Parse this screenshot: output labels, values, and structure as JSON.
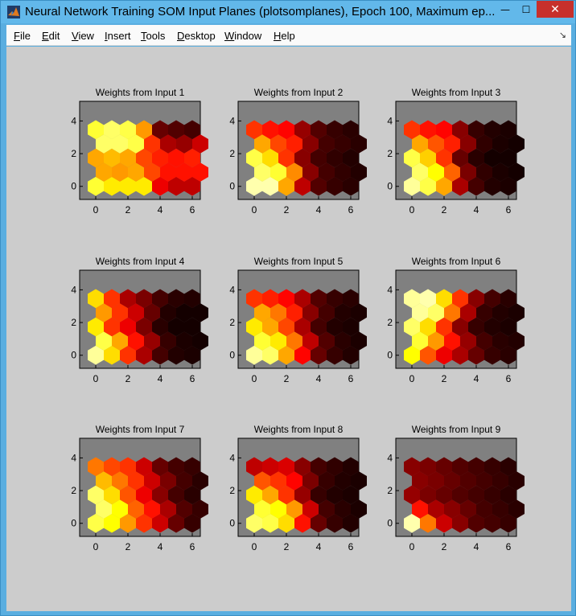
{
  "window": {
    "title": "Neural Network Training SOM Input Planes (plotsomplanes), Epoch 100, Maximum ep...",
    "minimize_glyph": "—",
    "maximize_glyph": "☐",
    "close_glyph": "✕"
  },
  "menu": [
    {
      "key": "F",
      "rest": "ile"
    },
    {
      "key": "E",
      "rest": "dit"
    },
    {
      "key": "V",
      "rest": "iew"
    },
    {
      "key": "I",
      "rest": "nsert"
    },
    {
      "key": "T",
      "rest": "ools"
    },
    {
      "key": "D",
      "rest": "esktop"
    },
    {
      "key": "W",
      "rest": "indow"
    },
    {
      "key": "H",
      "rest": "elp"
    }
  ],
  "colors": {
    "figure_bg": "#cccccc",
    "axes_bg": "#808080",
    "colormap": "hot"
  },
  "chart_data": [
    {
      "type": "heatmap",
      "title": "Weights from Input 1",
      "xticks": [
        "0",
        "2",
        "4",
        "6"
      ],
      "yticks": [
        "0",
        "2",
        "4"
      ],
      "rows": [
        [
          0.8,
          0.72,
          0.72,
          0.72,
          0.35,
          0.28,
          0.28
        ],
        [
          0.62,
          0.6,
          0.62,
          0.48,
          0.4,
          0.4,
          0.4
        ],
        [
          0.62,
          0.65,
          0.62,
          0.48,
          0.42,
          0.4,
          0.42
        ],
        [
          0.85,
          0.85,
          0.82,
          0.45,
          0.25,
          0.22,
          0.3
        ],
        [
          0.8,
          0.85,
          0.82,
          0.6,
          0.15,
          0.12,
          0.1
        ]
      ]
    },
    {
      "type": "heatmap",
      "title": "Weights from Input 2",
      "xticks": [
        "0",
        "2",
        "4",
        "6"
      ],
      "yticks": [
        "0",
        "2",
        "4"
      ],
      "rows": [
        [
          0.92,
          0.92,
          0.62,
          0.28,
          0.12,
          0.08,
          0.06
        ],
        [
          0.85,
          0.8,
          0.58,
          0.2,
          0.1,
          0.07,
          0.05
        ],
        [
          0.82,
          0.7,
          0.45,
          0.2,
          0.1,
          0.07,
          0.05
        ],
        [
          0.62,
          0.48,
          0.42,
          0.2,
          0.1,
          0.08,
          0.06
        ],
        [
          0.45,
          0.4,
          0.38,
          0.22,
          0.12,
          0.08,
          0.06
        ]
      ]
    },
    {
      "type": "heatmap",
      "title": "Weights from Input 3",
      "xticks": [
        "0",
        "2",
        "4",
        "6"
      ],
      "yticks": [
        "0",
        "2",
        "4"
      ],
      "rows": [
        [
          0.9,
          0.82,
          0.62,
          0.25,
          0.1,
          0.05,
          0.04
        ],
        [
          0.85,
          0.75,
          0.52,
          0.18,
          0.07,
          0.04,
          0.03
        ],
        [
          0.82,
          0.68,
          0.45,
          0.15,
          0.06,
          0.03,
          0.03
        ],
        [
          0.62,
          0.5,
          0.42,
          0.2,
          0.07,
          0.04,
          0.03
        ],
        [
          0.45,
          0.4,
          0.38,
          0.2,
          0.08,
          0.05,
          0.04
        ]
      ]
    },
    {
      "type": "heatmap",
      "title": "Weights from Input 4",
      "xticks": [
        "0",
        "2",
        "4",
        "6"
      ],
      "yticks": [
        "0",
        "2",
        "4"
      ],
      "rows": [
        [
          0.9,
          0.7,
          0.45,
          0.25,
          0.1,
          0.05,
          0.04
        ],
        [
          0.82,
          0.62,
          0.4,
          0.22,
          0.08,
          0.04,
          0.03
        ],
        [
          0.72,
          0.45,
          0.35,
          0.18,
          0.06,
          0.03,
          0.03
        ],
        [
          0.6,
          0.45,
          0.3,
          0.15,
          0.05,
          0.03,
          0.03
        ],
        [
          0.7,
          0.45,
          0.25,
          0.18,
          0.1,
          0.06,
          0.05
        ]
      ]
    },
    {
      "type": "heatmap",
      "title": "Weights from Input 5",
      "xticks": [
        "0",
        "2",
        "4",
        "6"
      ],
      "yticks": [
        "0",
        "2",
        "4"
      ],
      "rows": [
        [
          0.9,
          0.85,
          0.62,
          0.38,
          0.15,
          0.08,
          0.05
        ],
        [
          0.8,
          0.72,
          0.55,
          0.28,
          0.12,
          0.06,
          0.04
        ],
        [
          0.72,
          0.62,
          0.48,
          0.25,
          0.1,
          0.05,
          0.04
        ],
        [
          0.62,
          0.55,
          0.42,
          0.2,
          0.1,
          0.05,
          0.04
        ],
        [
          0.45,
          0.42,
          0.38,
          0.25,
          0.12,
          0.08,
          0.06
        ]
      ]
    },
    {
      "type": "heatmap",
      "title": "Weights from Input 6",
      "xticks": [
        "0",
        "2",
        "4",
        "6"
      ],
      "yticks": [
        "0",
        "2",
        "4"
      ],
      "rows": [
        [
          0.75,
          0.5,
          0.35,
          0.25,
          0.15,
          0.08,
          0.06
        ],
        [
          0.8,
          0.6,
          0.4,
          0.22,
          0.1,
          0.06,
          0.05
        ],
        [
          0.85,
          0.7,
          0.45,
          0.2,
          0.08,
          0.05,
          0.04
        ],
        [
          0.9,
          0.85,
          0.55,
          0.25,
          0.08,
          0.05,
          0.04
        ],
        [
          0.9,
          0.92,
          0.7,
          0.45,
          0.2,
          0.1,
          0.06
        ]
      ]
    },
    {
      "type": "heatmap",
      "title": "Weights from Input 7",
      "xticks": [
        "0",
        "2",
        "4",
        "6"
      ],
      "yticks": [
        "0",
        "2",
        "4"
      ],
      "rows": [
        [
          0.82,
          0.75,
          0.6,
          0.45,
          0.3,
          0.15,
          0.08
        ],
        [
          0.85,
          0.75,
          0.52,
          0.4,
          0.25,
          0.12,
          0.08
        ],
        [
          0.85,
          0.7,
          0.5,
          0.35,
          0.2,
          0.1,
          0.06
        ],
        [
          0.65,
          0.55,
          0.45,
          0.3,
          0.18,
          0.1,
          0.06
        ],
        [
          0.55,
          0.48,
          0.45,
          0.3,
          0.15,
          0.1,
          0.08
        ]
      ]
    },
    {
      "type": "heatmap",
      "title": "Weights from Input 8",
      "xticks": [
        "0",
        "2",
        "4",
        "6"
      ],
      "yticks": [
        "0",
        "2",
        "4"
      ],
      "rows": [
        [
          0.85,
          0.82,
          0.7,
          0.4,
          0.15,
          0.08,
          0.05
        ],
        [
          0.8,
          0.75,
          0.6,
          0.3,
          0.1,
          0.06,
          0.04
        ],
        [
          0.72,
          0.62,
          0.45,
          0.22,
          0.08,
          0.05,
          0.04
        ],
        [
          0.5,
          0.45,
          0.38,
          0.18,
          0.08,
          0.05,
          0.04
        ],
        [
          0.28,
          0.3,
          0.32,
          0.2,
          0.1,
          0.07,
          0.05
        ]
      ]
    },
    {
      "type": "heatmap",
      "title": "Weights from Input 9",
      "xticks": [
        "0",
        "2",
        "4",
        "6"
      ],
      "yticks": [
        "0",
        "2",
        "4"
      ],
      "rows": [
        [
          0.92,
          0.55,
          0.3,
          0.2,
          0.12,
          0.1,
          0.08
        ],
        [
          0.4,
          0.25,
          0.2,
          0.15,
          0.1,
          0.08,
          0.06
        ],
        [
          0.22,
          0.18,
          0.15,
          0.12,
          0.1,
          0.08,
          0.06
        ],
        [
          0.2,
          0.18,
          0.15,
          0.12,
          0.1,
          0.08,
          0.06
        ],
        [
          0.2,
          0.18,
          0.15,
          0.12,
          0.1,
          0.08,
          0.06
        ]
      ]
    }
  ]
}
